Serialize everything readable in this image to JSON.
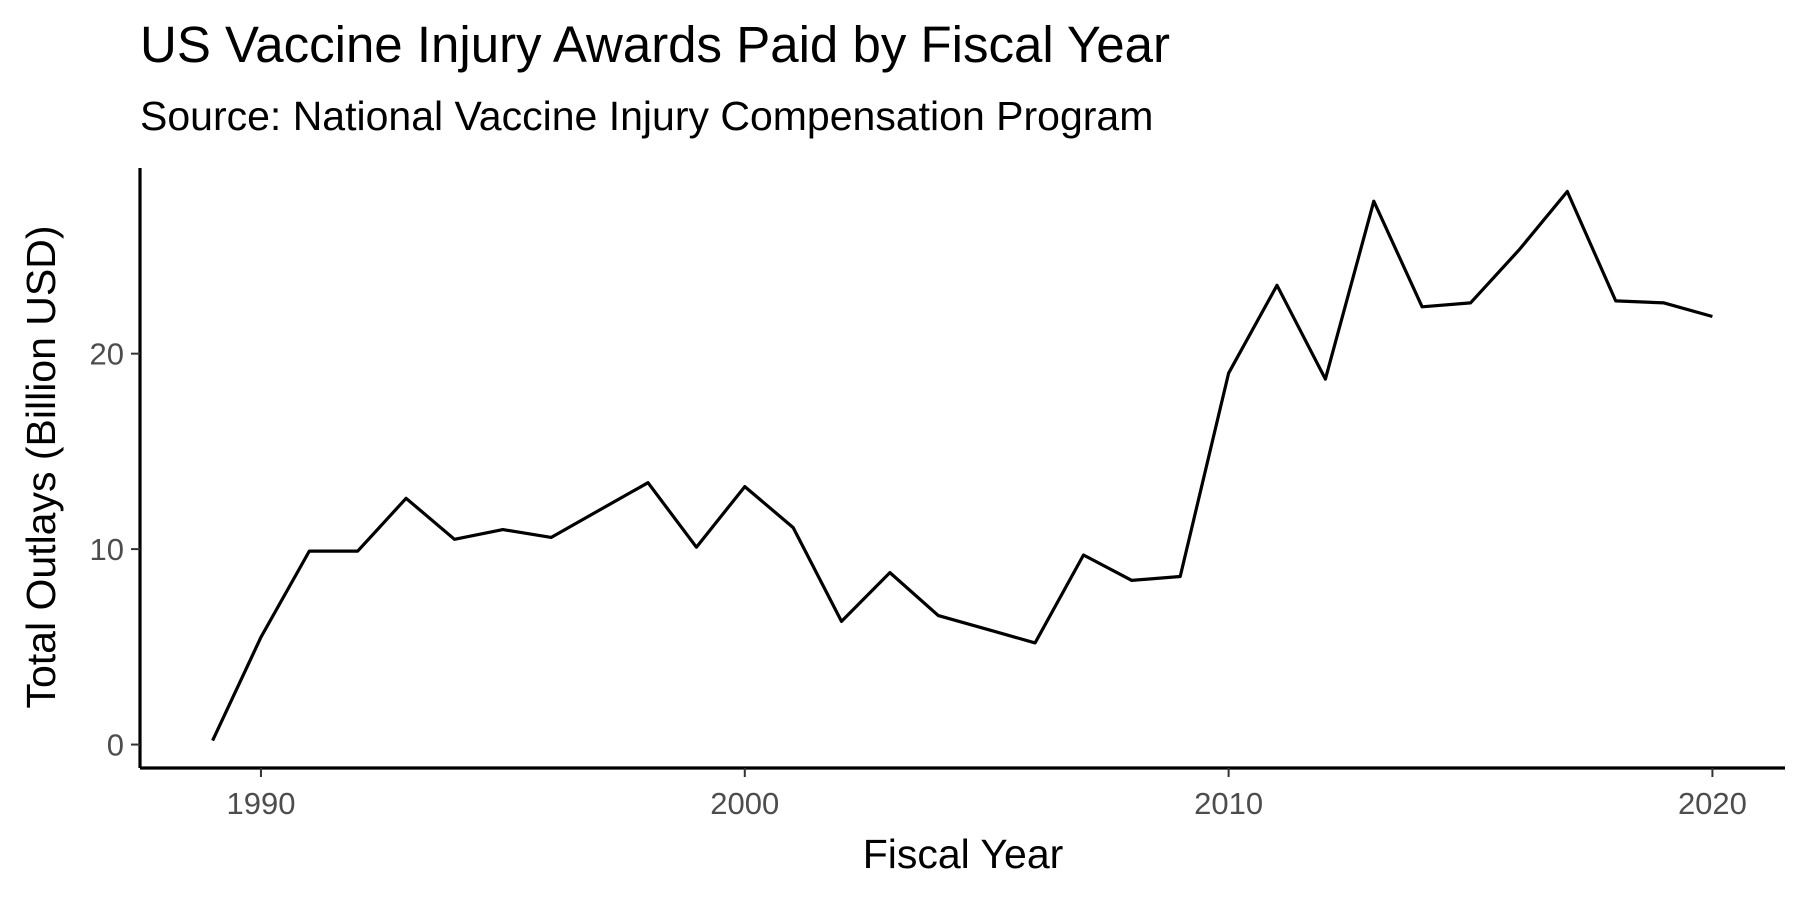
{
  "chart_data": {
    "type": "line",
    "title": "US Vaccine Injury Awards Paid by Fiscal Year",
    "subtitle": "Source: National Vaccine Injury Compensation Program",
    "xlabel": "Fiscal Year",
    "ylabel": "Total Outlays (Billion USD)",
    "xlim": [
      1987.5,
      2021.5
    ],
    "ylim": [
      -1.2,
      29.5
    ],
    "x_ticks": [
      1990,
      2000,
      2010,
      2020
    ],
    "y_ticks": [
      0,
      10,
      20
    ],
    "grid": false,
    "legend": "none",
    "line_color": "#000000",
    "series": [
      {
        "x": [
          1989,
          1990,
          1991,
          1992,
          1993,
          1994,
          1995,
          1996,
          1997,
          1998,
          1999,
          2000,
          2001,
          2002,
          2003,
          2004,
          2005,
          2006,
          2007,
          2008,
          2009,
          2010,
          2011,
          2012,
          2013,
          2014,
          2015,
          2016,
          2017,
          2018,
          2019,
          2020
        ],
        "values": [
          0.2,
          5.5,
          9.9,
          9.9,
          12.6,
          10.5,
          11.0,
          10.6,
          12.0,
          13.4,
          10.1,
          13.2,
          11.1,
          6.3,
          8.8,
          6.6,
          5.9,
          5.2,
          9.7,
          8.4,
          8.6,
          19.0,
          23.5,
          18.7,
          27.8,
          22.4,
          22.6,
          25.3,
          28.3,
          22.7,
          22.6,
          21.9
        ]
      }
    ]
  }
}
